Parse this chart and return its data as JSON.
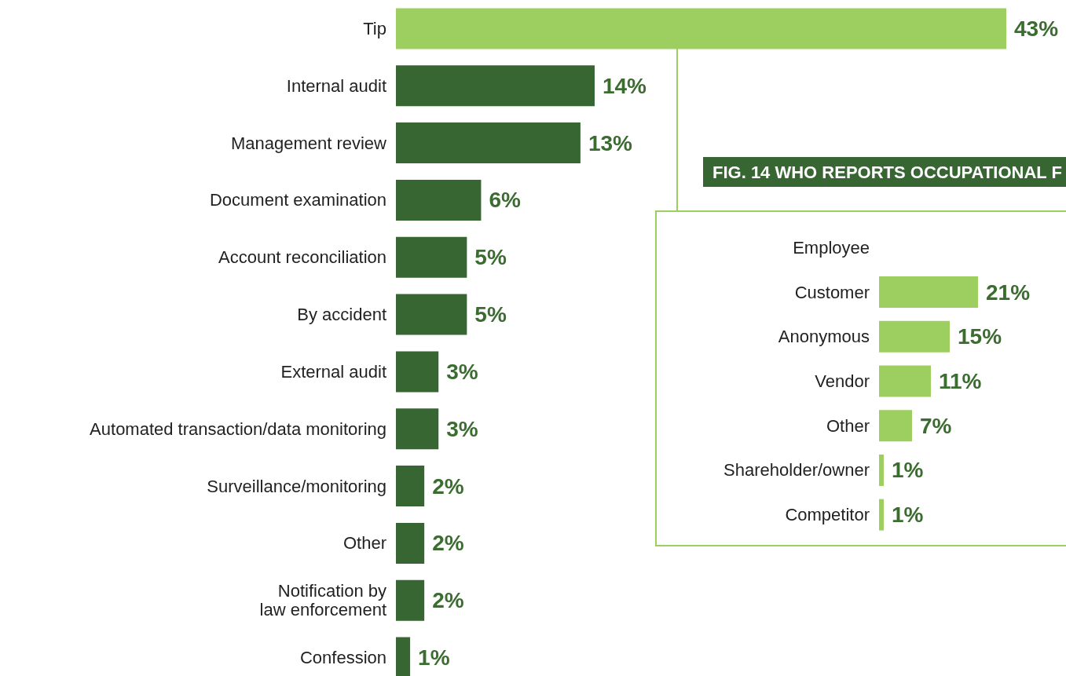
{
  "chart_data": [
    {
      "type": "bar",
      "orientation": "horizontal",
      "categories": [
        "Tip",
        "Internal audit",
        "Management review",
        "Document examination",
        "Account reconciliation",
        "By accident",
        "External audit",
        "Automated transaction/data monitoring",
        "Surveillance/monitoring",
        "Other",
        "Notification by\nlaw enforcement",
        "Confession"
      ],
      "values": [
        43,
        14,
        13,
        6,
        5,
        5,
        3,
        3,
        2,
        2,
        2,
        1
      ],
      "colors": [
        "#9ccf5f",
        "#376633",
        "#376633",
        "#376633",
        "#376633",
        "#376633",
        "#376633",
        "#376633",
        "#376633",
        "#376633",
        "#376633",
        "#376633"
      ],
      "value_labels": [
        "43%",
        "14%",
        "13%",
        "6%",
        "5%",
        "5%",
        "3%",
        "3%",
        "2%",
        "2%",
        "2%",
        "1%"
      ]
    },
    {
      "type": "bar",
      "orientation": "horizontal",
      "title": "FIG. 14 WHO REPORTS OCCUPATIONAL F",
      "categories": [
        "Employee",
        "Customer",
        "Anonymous",
        "Vendor",
        "Other",
        "Shareholder/owner",
        "Competitor"
      ],
      "values": [
        null,
        21,
        15,
        11,
        7,
        1,
        1
      ],
      "color": "#9ccf5f",
      "value_labels": [
        null,
        "21%",
        "15%",
        "11%",
        "7%",
        "1%",
        "1%"
      ]
    }
  ]
}
